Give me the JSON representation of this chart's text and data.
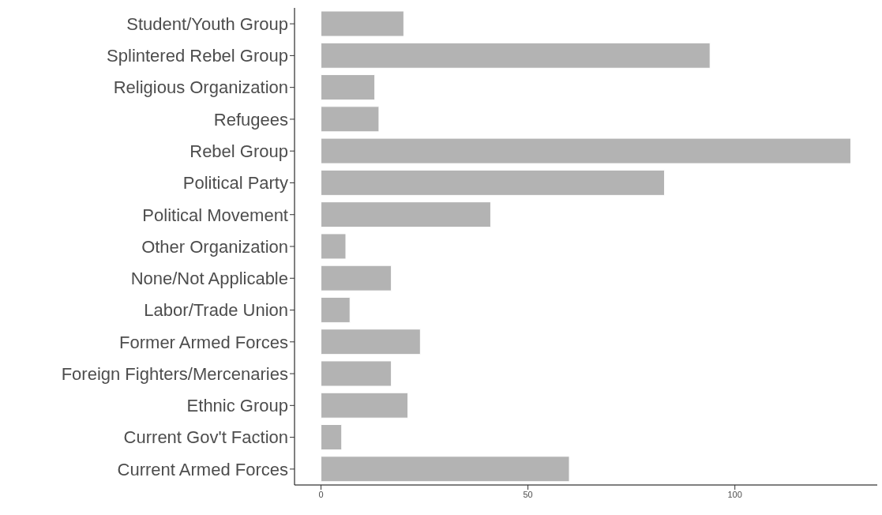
{
  "chart_data": {
    "type": "bar",
    "orientation": "horizontal",
    "categories": [
      "Student/Youth Group",
      "Splintered Rebel Group",
      "Religious Organization",
      "Refugees",
      "Rebel Group",
      "Political Party",
      "Political Movement",
      "Other Organization",
      "None/Not Applicable",
      "Labor/Trade Union",
      "Former Armed Forces",
      "Foreign Fighters/Mercenaries",
      "Ethnic Group",
      "Current Gov't Faction",
      "Current Armed Forces"
    ],
    "values": [
      20,
      94,
      13,
      14,
      128,
      83,
      41,
      6,
      17,
      7,
      24,
      17,
      21,
      5,
      60
    ],
    "color": "#b3b3b3",
    "xlim": [
      -6.4,
      134.4
    ],
    "xticks": [
      0,
      50,
      100
    ],
    "grid": false,
    "legend": false
  }
}
